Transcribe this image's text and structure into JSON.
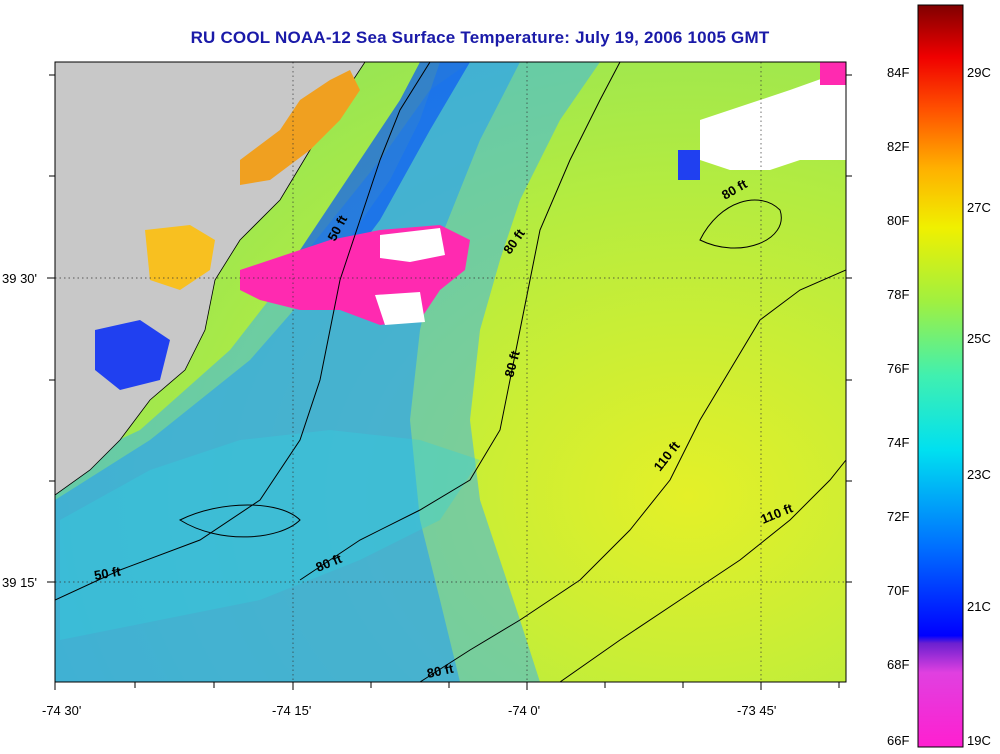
{
  "title": "RU COOL  NOAA-12  Sea Surface Temperature:  July 19, 2006 1005 GMT",
  "axes": {
    "x_ticks": [
      "-74 30'",
      "-74 15'",
      "-74 0'",
      "-73 45'"
    ],
    "y_ticks": [
      "39 30'",
      "39 15'"
    ]
  },
  "depth_labels": [
    "50 ft",
    "80 ft",
    "80 ft",
    "80 ft",
    "110 ft",
    "110 ft",
    "50 ft",
    "80 ft",
    "80 ft"
  ],
  "colorbar": {
    "fahrenheit_labels": [
      "84F",
      "82F",
      "80F",
      "78F",
      "76F",
      "74F",
      "72F",
      "70F",
      "68F",
      "66F"
    ],
    "celsius_labels": [
      "29C",
      "27C",
      "25C",
      "23C",
      "21C",
      "19C"
    ]
  },
  "colors": {
    "land": "#c8c8c8",
    "cloud": "#ffffff",
    "title": "#1a1aa8"
  }
}
